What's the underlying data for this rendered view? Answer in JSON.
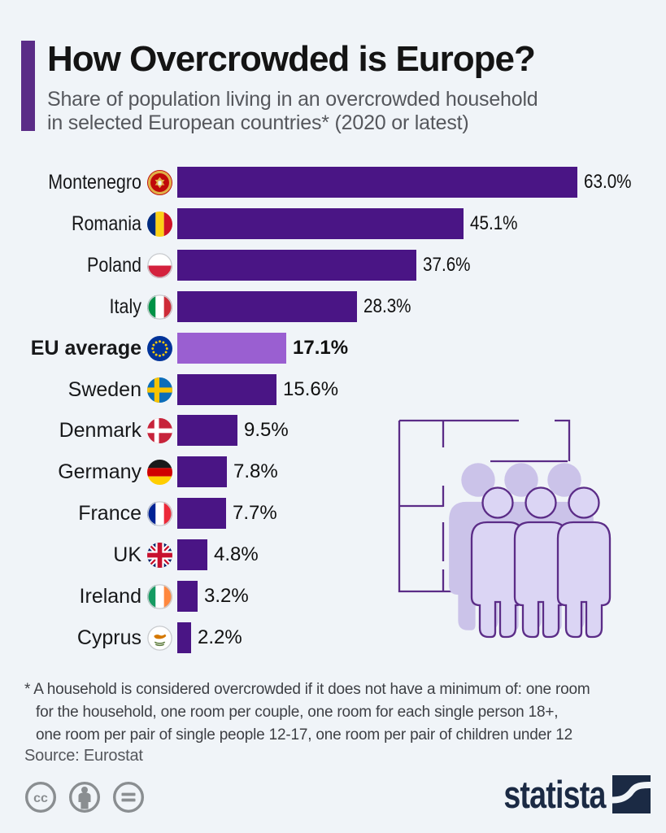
{
  "header": {
    "accent_color": "#5b2c87"
  },
  "chart_data": {
    "type": "bar",
    "orientation": "horizontal",
    "title": "How Overcrowded is Europe?",
    "subtitle": "Share of population living in an overcrowded household in selected European countries* (2020 or latest)",
    "subtitle_lines": [
      "Share of population living in an overcrowded household",
      "in selected European countries* (2020 or latest)"
    ],
    "unit": "%",
    "xlim": [
      0,
      63
    ],
    "grid": false,
    "legend": false,
    "categories": [
      "Montenegro",
      "Romania",
      "Poland",
      "Italy",
      "EU average",
      "Sweden",
      "Denmark",
      "Germany",
      "France",
      "UK",
      "Ireland",
      "Cyprus"
    ],
    "values": [
      63.0,
      45.1,
      37.6,
      28.3,
      17.1,
      15.6,
      9.5,
      7.8,
      7.7,
      4.8,
      3.2,
      2.2
    ],
    "rows": [
      {
        "label": "Montenegro",
        "flag": "montenegro",
        "value": 63.0,
        "display": "63.0%",
        "emphasis": false,
        "condensed": true
      },
      {
        "label": "Romania",
        "flag": "romania",
        "value": 45.1,
        "display": "45.1%",
        "emphasis": false,
        "condensed": true
      },
      {
        "label": "Poland",
        "flag": "poland",
        "value": 37.6,
        "display": "37.6%",
        "emphasis": false,
        "condensed": true
      },
      {
        "label": "Italy",
        "flag": "italy",
        "value": 28.3,
        "display": "28.3%",
        "emphasis": false,
        "condensed": true
      },
      {
        "label": "EU average",
        "flag": "eu",
        "value": 17.1,
        "display": "17.1%",
        "emphasis": true,
        "condensed": false
      },
      {
        "label": "Sweden",
        "flag": "sweden",
        "value": 15.6,
        "display": "15.6%",
        "emphasis": false,
        "condensed": false
      },
      {
        "label": "Denmark",
        "flag": "denmark",
        "value": 9.5,
        "display": "9.5%",
        "emphasis": false,
        "condensed": false
      },
      {
        "label": "Germany",
        "flag": "germany",
        "value": 7.8,
        "display": "7.8%",
        "emphasis": false,
        "condensed": false
      },
      {
        "label": "France",
        "flag": "france",
        "value": 7.7,
        "display": "7.7%",
        "emphasis": false,
        "condensed": false
      },
      {
        "label": "UK",
        "flag": "uk",
        "value": 4.8,
        "display": "4.8%",
        "emphasis": false,
        "condensed": false
      },
      {
        "label": "Ireland",
        "flag": "ireland",
        "value": 3.2,
        "display": "3.2%",
        "emphasis": false,
        "condensed": false
      },
      {
        "label": "Cyprus",
        "flag": "cyprus",
        "value": 2.2,
        "display": "2.2%",
        "emphasis": false,
        "condensed": false
      }
    ],
    "colors": {
      "bar": "#4a1585",
      "highlight_bar": "#9a5fd1"
    },
    "footnote_lines": [
      "* A household is considered overcrowded if it does not have a minimum of: one room",
      "for the household, one room per couple, one room for each single person 18+,",
      "one room per pair of single people 12-17, one room per pair of children under 12"
    ],
    "source": "Source: Eurostat"
  },
  "footer": {
    "brand": "statista",
    "license_icons": [
      "cc-icon",
      "attribution-icon",
      "no-derivatives-icon"
    ]
  }
}
